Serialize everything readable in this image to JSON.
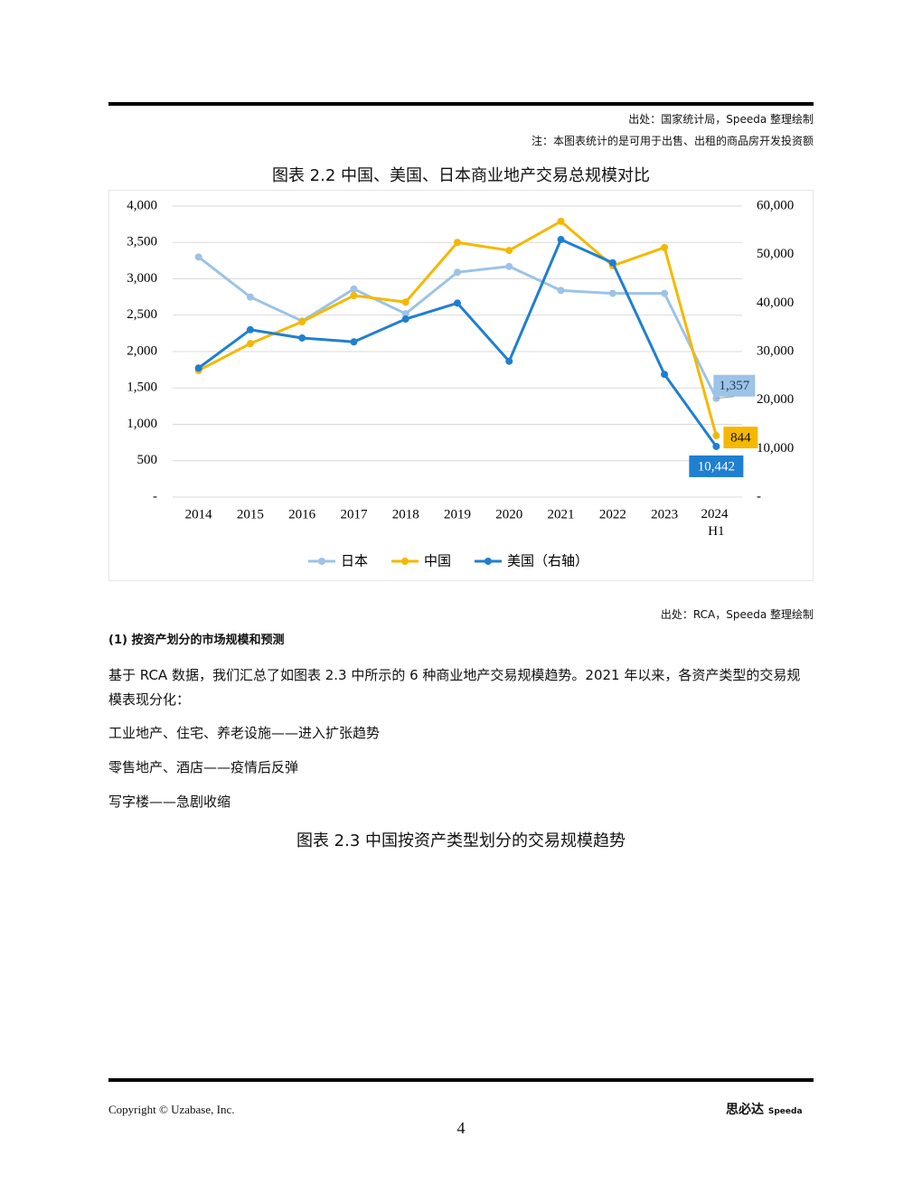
{
  "header": {
    "source": "出处：国家统计局，Speeda 整理绘制",
    "note": "注：本图表统计的是可用于出售、出租的商品房开发投资额"
  },
  "chart_data": {
    "type": "line",
    "title": "图表 2.2 中国、美国、日本商业地产交易总规模对比",
    "categories": [
      "2014",
      "2015",
      "2016",
      "2017",
      "2018",
      "2019",
      "2020",
      "2021",
      "2022",
      "2023",
      "2024 H1"
    ],
    "series": [
      {
        "name": "日本",
        "color": "#9dc3e6",
        "values": [
          3300,
          2750,
          2420,
          2860,
          2520,
          3090,
          3170,
          2840,
          2800,
          2800,
          1357
        ],
        "value_labels": [
          null,
          null,
          null,
          null,
          null,
          null,
          null,
          null,
          null,
          null,
          "1,357"
        ]
      },
      {
        "name": "中国",
        "color": "#f5b800",
        "values": [
          1740,
          2110,
          2410,
          2770,
          2680,
          3500,
          3390,
          3790,
          3180,
          3430,
          844
        ],
        "value_labels": [
          null,
          null,
          null,
          null,
          null,
          null,
          null,
          null,
          null,
          null,
          "844"
        ]
      },
      {
        "name": "美国（右轴）",
        "color": "#1f7fd0",
        "axis": "y2",
        "values": [
          26600,
          34500,
          32800,
          32000,
          36700,
          40000,
          28000,
          53100,
          48300,
          25300,
          10442
        ],
        "value_labels": [
          null,
          null,
          null,
          null,
          null,
          null,
          null,
          null,
          null,
          null,
          "10,442"
        ]
      }
    ],
    "ylim": [
      0,
      4000
    ],
    "yticks": [
      {
        "value": 0,
        "label": "-"
      },
      500,
      {
        "value": 1000,
        "label": "1,000"
      },
      {
        "value": 1500,
        "label": "1,500"
      },
      {
        "value": 2000,
        "label": "2,000"
      },
      {
        "value": 2500,
        "label": "2,500"
      },
      {
        "value": 3000,
        "label": "3,000"
      },
      {
        "value": 3500,
        "label": "3,500"
      },
      {
        "value": 4000,
        "label": "4,000"
      }
    ],
    "y2lim": [
      0,
      60000
    ],
    "y2ticks": [
      {
        "value": 0,
        "label": "-"
      },
      {
        "value": 10000,
        "label": "10,000"
      },
      {
        "value": 20000,
        "label": "20,000"
      },
      {
        "value": 30000,
        "label": "30,000"
      },
      {
        "value": 40000,
        "label": "40,000"
      },
      {
        "value": 50000,
        "label": "50,000"
      },
      {
        "value": 60000,
        "label": "60,000"
      }
    ],
    "grid": true,
    "legend": "bottom"
  },
  "chart_source": "出处：RCA，Speeda 整理绘制",
  "section": {
    "heading": "(1) 按资产划分的市场规模和预测",
    "paragraph": "基于 RCA 数据，我们汇总了如图表 2.3 中所示的 6 种商业地产交易规模趋势。2021 年以来，各资产类型的交易规模表现分化：",
    "items": [
      "工业地产、住宅、养老设施——进入扩张趋势",
      "零售地产、酒店——疫情后反弹",
      "写字楼——急剧收缩"
    ],
    "figure_title": "图表 2.3 中国按资产类型划分的交易规模趋势"
  },
  "footer": {
    "copyright": "Copyright © Uzabase, Inc.",
    "page": "4",
    "logo": "思必达",
    "logo_sub": "Speeda"
  }
}
